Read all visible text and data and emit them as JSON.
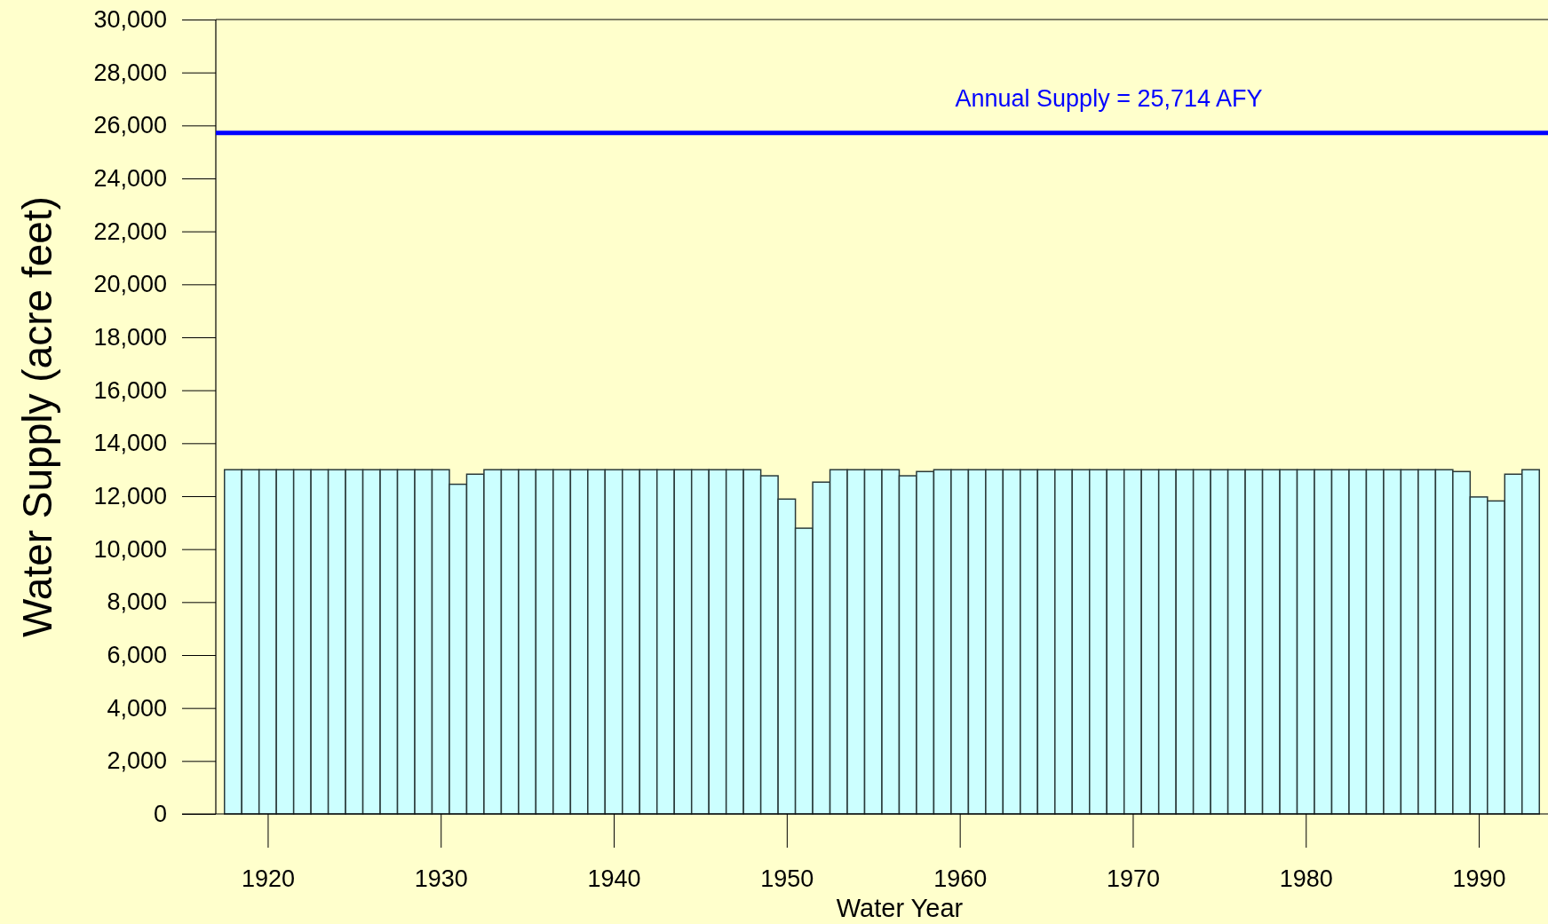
{
  "chart_data": {
    "type": "bar",
    "xlabel": "Water Year",
    "ylabel": "Water Supply (acre feet)",
    "x": [
      1918,
      1919,
      1920,
      1921,
      1922,
      1923,
      1924,
      1925,
      1926,
      1927,
      1928,
      1929,
      1930,
      1931,
      1932,
      1933,
      1934,
      1935,
      1936,
      1937,
      1938,
      1939,
      1940,
      1941,
      1942,
      1943,
      1944,
      1945,
      1946,
      1947,
      1948,
      1949,
      1950,
      1951,
      1952,
      1953,
      1954,
      1955,
      1956,
      1957,
      1958,
      1959,
      1960,
      1961,
      1962,
      1963,
      1964,
      1965,
      1966,
      1967,
      1968,
      1969,
      1970,
      1971,
      1972,
      1973,
      1974,
      1975,
      1976,
      1977,
      1978,
      1979,
      1980,
      1981,
      1982,
      1983,
      1984,
      1985,
      1986,
      1987,
      1988,
      1989,
      1990,
      1991,
      1992,
      1993
    ],
    "values": [
      13000,
      13000,
      13000,
      13000,
      13000,
      13000,
      13000,
      13000,
      13000,
      13000,
      13000,
      13000,
      13000,
      12450,
      12830,
      13000,
      13000,
      13000,
      13000,
      13000,
      13000,
      13000,
      13000,
      13000,
      13000,
      13000,
      13000,
      13000,
      13000,
      13000,
      13000,
      12770,
      11890,
      10790,
      12530,
      13000,
      13000,
      13000,
      13000,
      12770,
      12930,
      13000,
      13000,
      13000,
      13000,
      13000,
      13000,
      13000,
      13000,
      13000,
      13000,
      13000,
      13000,
      13000,
      13000,
      13000,
      13000,
      13000,
      13000,
      13000,
      13000,
      13000,
      13000,
      13000,
      13000,
      13000,
      13000,
      13000,
      13000,
      13000,
      13000,
      12930,
      11970,
      11820,
      12830,
      13000
    ],
    "color": "#ccffff",
    "xlim": [
      1917,
      1994
    ],
    "xticks": [
      1920,
      1930,
      1940,
      1950,
      1960,
      1970,
      1980,
      1990
    ],
    "ylim": [
      0,
      30000
    ],
    "yticks": [
      0,
      {
        "value": 2000,
        "label": "2,000"
      },
      {
        "value": 4000,
        "label": "4,000"
      },
      {
        "value": 6000,
        "label": "6,000"
      },
      {
        "value": 8000,
        "label": "8,000"
      },
      {
        "value": 10000,
        "label": "10,000"
      },
      {
        "value": 12000,
        "label": "12,000"
      },
      {
        "value": 14000,
        "label": "14,000"
      },
      {
        "value": 16000,
        "label": "16,000"
      },
      {
        "value": 18000,
        "label": "18,000"
      },
      {
        "value": 20000,
        "label": "20,000"
      },
      {
        "value": 22000,
        "label": "22,000"
      },
      {
        "value": 24000,
        "label": "24,000"
      },
      {
        "value": 26000,
        "label": "26,000"
      },
      {
        "value": 28000,
        "label": "28,000"
      },
      {
        "value": 30000,
        "label": "30,000"
      }
    ],
    "ref_lines": [
      {
        "axis": "y",
        "value": 25714,
        "label": "Annual Supply = 25,714 AFY",
        "color": "#0000ff"
      }
    ],
    "grid": false
  }
}
